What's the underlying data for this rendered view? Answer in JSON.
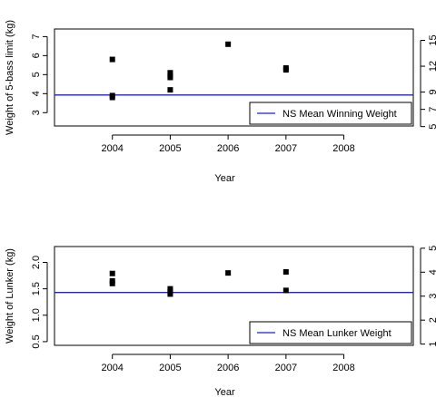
{
  "chart_data": [
    {
      "type": "scatter",
      "xlabel": "Year",
      "ylabel": "Weight of 5-bass limit (kg)",
      "x_ticks": [
        2004,
        2005,
        2006,
        2007,
        2008
      ],
      "xlim": [
        2003.0,
        2009.2
      ],
      "ylim": [
        2.3,
        7.4
      ],
      "y_ticks": [
        3,
        4,
        5,
        6,
        7
      ],
      "y2_ticks": [
        5,
        7,
        9,
        12,
        15
      ],
      "y2_scale": "kg × 2.2046 (lbs)",
      "grid": false,
      "points": [
        {
          "x": 2004,
          "y": 5.8
        },
        {
          "x": 2004,
          "y": 3.9
        },
        {
          "x": 2004,
          "y": 3.8
        },
        {
          "x": 2005,
          "y": 5.1
        },
        {
          "x": 2005,
          "y": 4.95
        },
        {
          "x": 2005,
          "y": 4.85
        },
        {
          "x": 2005,
          "y": 4.2
        },
        {
          "x": 2006,
          "y": 6.6
        },
        {
          "x": 2007,
          "y": 5.35
        },
        {
          "x": 2007,
          "y": 5.25
        }
      ],
      "reference_line": {
        "y": 3.93,
        "name": "NS Mean Winning Weight",
        "color": "#1f1fd6"
      },
      "legend": {
        "position": "bottom-right",
        "entries": [
          "NS Mean Winning Weight"
        ]
      }
    },
    {
      "type": "scatter",
      "xlabel": "Year",
      "ylabel": "Weight of Lunker (kg)",
      "x_ticks": [
        2004,
        2005,
        2006,
        2007,
        2008
      ],
      "xlim": [
        2003.0,
        2009.2
      ],
      "ylim": [
        0.43,
        2.3
      ],
      "y_ticks": [
        0.5,
        1.0,
        1.5,
        2.0
      ],
      "y_tick_labels": [
        "0.5",
        "1.0",
        "1.5",
        "2.0"
      ],
      "y2_ticks": [
        1,
        2,
        3,
        4,
        5
      ],
      "y2_scale": "kg × 2.2046 (lbs)",
      "grid": false,
      "points": [
        {
          "x": 2004,
          "y": 1.79
        },
        {
          "x": 2004,
          "y": 1.65
        },
        {
          "x": 2004,
          "y": 1.6
        },
        {
          "x": 2005,
          "y": 1.5
        },
        {
          "x": 2005,
          "y": 1.45
        },
        {
          "x": 2005,
          "y": 1.4
        },
        {
          "x": 2006,
          "y": 1.8
        },
        {
          "x": 2007,
          "y": 1.82
        },
        {
          "x": 2007,
          "y": 1.47
        }
      ],
      "reference_line": {
        "y": 1.43,
        "name": "NS Mean Lunker Weight",
        "color": "#1f1fd6"
      },
      "legend": {
        "position": "bottom-right",
        "entries": [
          "NS Mean Lunker Weight"
        ]
      }
    }
  ]
}
